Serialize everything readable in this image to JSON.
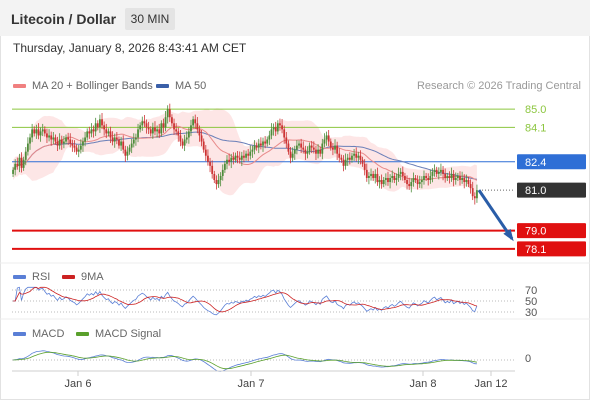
{
  "header": {
    "title": "Litecoin / Dollar",
    "interval": "30 MIN",
    "datetime": "Thursday, January 8, 2026 8:43:41 AM CET"
  },
  "legend": {
    "ma20": {
      "label": "MA 20 + Bollinger Bands",
      "color": "#f08080"
    },
    "ma50": {
      "label": "MA 50",
      "color": "#3a5fa8"
    },
    "research": "Research © 2026 Trading Central"
  },
  "colors": {
    "up": "#4d8c3a",
    "down": "#cc3333",
    "support": "#e01010",
    "pivot": "#2f6fd6",
    "last": "#333333",
    "resistance": "#8cc63f",
    "bollinger": "#fde3e3",
    "rsi": "#5a7fd6",
    "rsi_ma": "#cc2222",
    "macd": "#5a7fd6",
    "macd_signal": "#5aa02c"
  },
  "levels": [
    {
      "value": 85.0,
      "label": "85.0",
      "kind": "resistance"
    },
    {
      "value": 84.1,
      "label": "84.1",
      "kind": "resistance"
    },
    {
      "value": 82.4,
      "label": "82.4",
      "kind": "pivot"
    },
    {
      "value": 81.0,
      "label": "81.0",
      "kind": "last"
    },
    {
      "value": 79.0,
      "label": "79.0",
      "kind": "support"
    },
    {
      "value": 78.1,
      "label": "78.1",
      "kind": "support"
    }
  ],
  "rsi_panel": {
    "labels": {
      "rsi": "RSI",
      "ma": "9MA"
    },
    "levels": [
      "70",
      "50",
      "30"
    ]
  },
  "macd_panel": {
    "labels": {
      "macd": "MACD",
      "signal": "MACD Signal"
    },
    "zero_label": "0"
  },
  "xaxis": {
    "ticks": [
      "Jan 6",
      "Jan 7",
      "Jan 8",
      "Jan 12"
    ]
  },
  "chart_data": {
    "type": "candlestick",
    "ylim": [
      77.6,
      85.5
    ],
    "close": [
      82.0,
      82.3,
      82.2,
      82.6,
      82.1,
      82.5,
      82.9,
      83.3,
      83.6,
      84.0,
      83.8,
      84.0,
      83.7,
      83.9,
      84.0,
      83.8,
      83.6,
      83.7,
      83.5,
      83.6,
      83.4,
      83.2,
      83.5,
      83.3,
      83.4,
      83.6,
      83.5,
      83.3,
      83.2,
      83.1,
      82.9,
      83.0,
      83.2,
      83.4,
      83.6,
      83.9,
      83.8,
      84.0,
      83.9,
      84.3,
      84.1,
      84.5,
      84.2,
      84.0,
      83.8,
      83.9,
      83.6,
      83.4,
      83.6,
      83.5,
      83.2,
      83.4,
      83.0,
      82.7,
      82.9,
      83.1,
      83.3,
      83.5,
      83.6,
      84.0,
      84.2,
      84.4,
      84.3,
      84.1,
      84.0,
      83.8,
      84.1,
      83.9,
      84.0,
      83.8,
      84.3,
      84.1,
      84.6,
      85.0,
      84.6,
      84.3,
      84.0,
      83.9,
      83.7,
      83.4,
      83.2,
      83.5,
      83.6,
      83.9,
      84.2,
      84.5,
      84.3,
      84.0,
      83.7,
      83.4,
      83.0,
      82.7,
      82.4,
      82.2,
      81.8,
      81.5,
      81.3,
      81.5,
      81.7,
      82.0,
      82.3,
      82.5,
      82.4,
      82.6,
      82.5,
      82.7,
      82.6,
      82.5,
      82.7,
      82.6,
      82.8,
      82.7,
      82.9,
      83.0,
      83.2,
      83.1,
      83.3,
      83.2,
      83.4,
      83.3,
      83.5,
      83.7,
      84.0,
      84.1,
      83.9,
      84.3,
      84.2,
      84.0,
      83.6,
      83.3,
      82.9,
      82.6,
      82.8,
      83.0,
      83.2,
      83.3,
      83.1,
      83.0,
      82.8,
      82.9,
      83.2,
      83.1,
      83.0,
      82.8,
      83.0,
      82.8,
      83.3,
      83.5,
      83.7,
      83.4,
      83.1,
      83.0,
      83.2,
      82.8,
      82.6,
      82.5,
      82.2,
      82.5,
      82.6,
      82.5,
      82.7,
      82.8,
      82.6,
      82.7,
      82.5,
      82.3,
      82.0,
      81.6,
      81.7,
      81.8,
      81.6,
      81.8,
      81.4,
      81.5,
      81.3,
      81.5,
      81.6,
      81.4,
      81.6,
      81.7,
      81.5,
      81.6,
      81.8,
      81.9,
      81.7,
      81.5,
      81.3,
      81.2,
      81.4,
      81.6,
      81.5,
      81.3,
      81.4,
      81.5,
      81.7,
      81.6,
      81.5,
      81.7,
      81.9,
      82.0,
      81.8,
      81.9,
      82.0,
      81.8,
      81.6,
      81.7,
      81.6,
      81.8,
      81.5,
      81.6,
      81.7,
      81.5,
      81.6,
      81.4,
      81.5,
      81.3,
      81.1,
      80.7,
      80.6,
      81.0
    ],
    "projection": {
      "from": 81.0,
      "to": 78.6
    }
  }
}
